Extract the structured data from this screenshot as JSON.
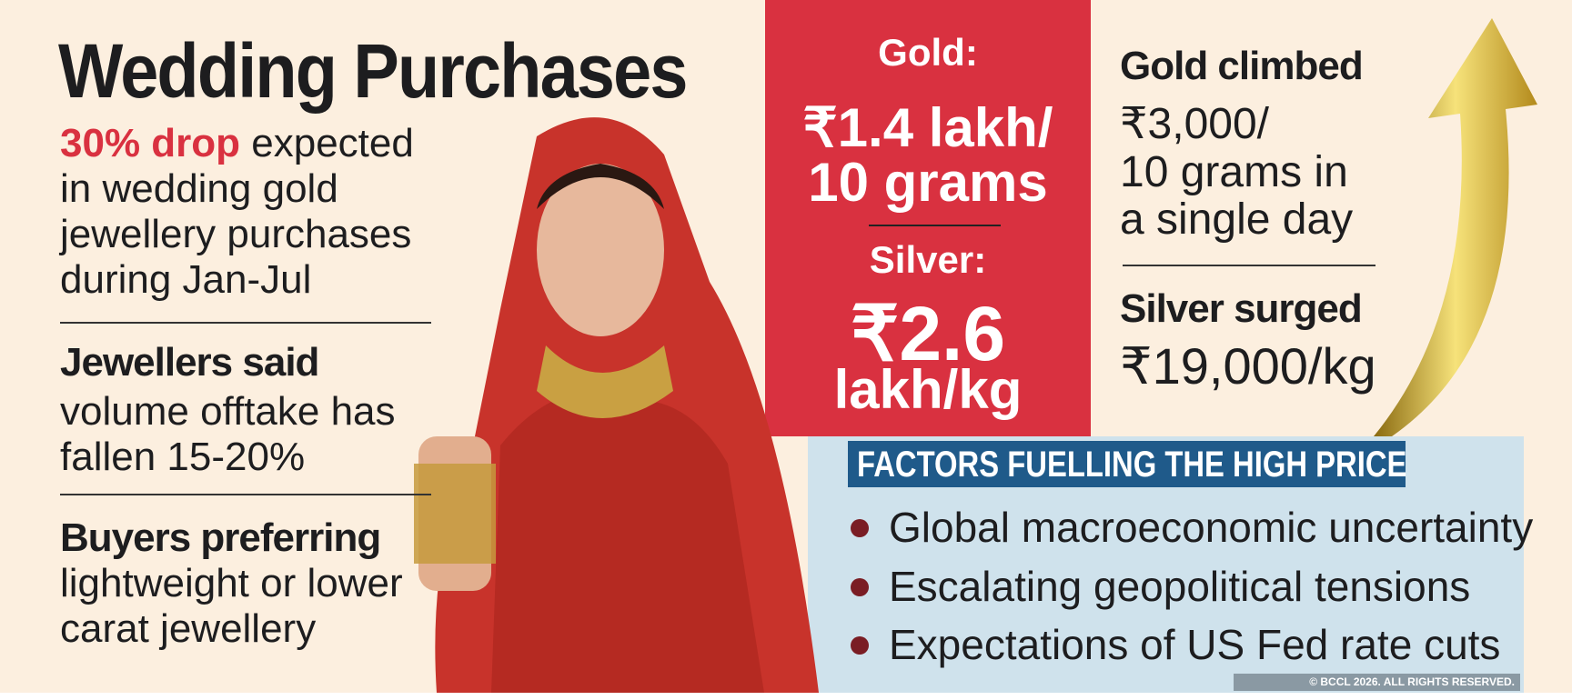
{
  "left": {
    "title": "Wedding Purchases",
    "drop_highlight": "30% drop",
    "drop_rest": " expected",
    "drop_lines": [
      "in wedding gold",
      "jewellery purchases",
      "during Jan-Jul"
    ],
    "jewellers_heading": "Jewellers said",
    "jewellers_lines": [
      "volume offtake has",
      "fallen 15-20%"
    ],
    "buyers_heading": "Buyers preferring",
    "buyers_lines": [
      "lightweight or lower",
      "carat jewellery"
    ]
  },
  "prices": {
    "gold_label": "Gold:",
    "gold_value": "₹1.4 lakh/",
    "gold_unit": "10 grams",
    "silver_label": "Silver:",
    "silver_value": "₹2.6",
    "silver_unit": "lakh/kg"
  },
  "moves": {
    "gold_heading": "Gold climbed",
    "gold_lines": [
      "₹3,000/",
      "10 grams in",
      "a single day"
    ],
    "silver_heading": "Silver surged",
    "silver_value": "₹19,000/kg"
  },
  "factors": {
    "heading": "FACTORS FUELLING THE HIGH PRICE",
    "items": [
      "Global macroeconomic uncertainty",
      "Escalating geopolitical tensions",
      "Expectations of US Fed rate cuts"
    ]
  },
  "watermark": "© BCCL 2026. ALL RIGHTS RESERVED.",
  "colors": {
    "accent_red": "#d93140",
    "background": "#fcefdf",
    "panel_blue": "#cfe2ec",
    "heading_blue": "#1f5a8a",
    "bullet": "#7a1d24"
  }
}
